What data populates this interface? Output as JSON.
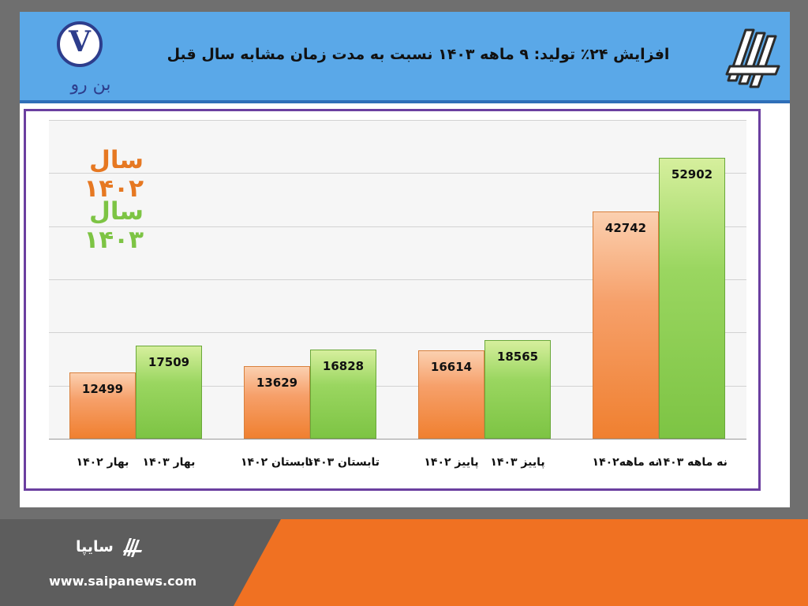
{
  "header": {
    "title": "افزایش ۲۴٪ تولید: ۹ ماهه ۱۴۰۳ نسبت به مدت زمان مشابه سال قبل",
    "left_logo_letter": "V",
    "left_logo_caption": "بن رو"
  },
  "footer": {
    "brand": "سایپا",
    "url": "www.saipanews.com"
  },
  "colors": {
    "header_bg": "#5aa8e8",
    "frame": "#6b3fa0",
    "series_1402": "#f08030",
    "series_1403": "#7dc444",
    "footer_orange": "#f07122"
  },
  "chart_data": {
    "type": "bar",
    "title": "افزایش ۲۴٪ تولید: ۹ ماهه ۱۴۰۳ نسبت به مدت زمان مشابه سال قبل",
    "xlabel": "",
    "ylabel": "",
    "ylim": [
      0,
      60000
    ],
    "grid": true,
    "legend_position": "top-left",
    "series": [
      {
        "name": "سال ۱۴۰۲",
        "color": "#f08030"
      },
      {
        "name": "سال ۱۴۰۳",
        "color": "#7dc444"
      }
    ],
    "bars": [
      {
        "label": "بهار ۱۴۰۲",
        "series": 0,
        "value": 12499
      },
      {
        "label": "بهار ۱۴۰۳",
        "series": 1,
        "value": 17509
      },
      {
        "label": "تابستان ۱۴۰۲",
        "series": 0,
        "value": 13629
      },
      {
        "label": "تابستان ۱۴۰۳",
        "series": 1,
        "value": 16828
      },
      {
        "label": "پاییز ۱۴۰۲",
        "series": 0,
        "value": 16614
      },
      {
        "label": "پاییز ۱۴۰۳",
        "series": 1,
        "value": 18565
      },
      {
        "label": "نه ماهه۱۴۰۲",
        "series": 0,
        "value": 42742
      },
      {
        "label": "نه ماهه ۱۴۰۳",
        "series": 1,
        "value": 52902
      }
    ]
  }
}
